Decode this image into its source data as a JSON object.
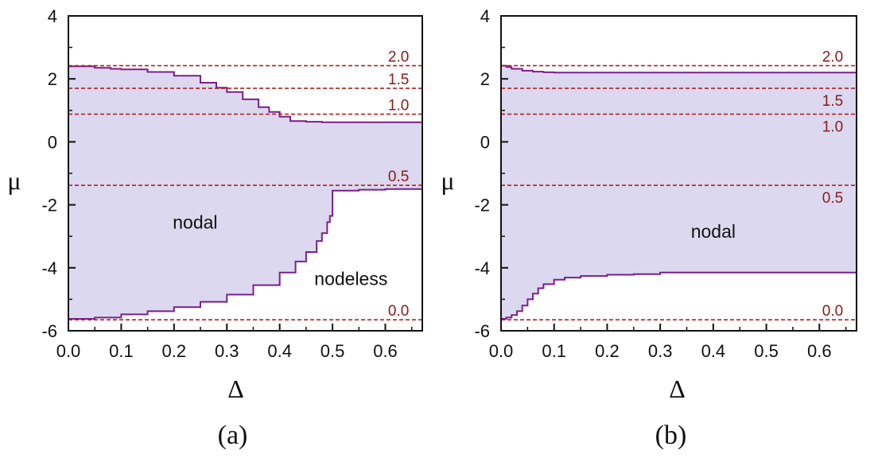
{
  "colors": {
    "fill": "#dcd8f0",
    "boundary": "#7a1f8a",
    "refline": "#b22222",
    "reflabel": "#8b1a1a",
    "axis": "#111111"
  },
  "chart_data": [
    {
      "type": "area",
      "panel_label": "(a)",
      "xlabel": "Δ",
      "ylabel": "μ",
      "xlim": [
        0.0,
        0.67
      ],
      "ylim": [
        -6,
        4
      ],
      "xticks": [
        "0.0",
        "0.1",
        "0.2",
        "0.3",
        "0.4",
        "0.5",
        "0.6"
      ],
      "xtick_values": [
        0.0,
        0.1,
        0.2,
        0.3,
        0.4,
        0.5,
        0.6
      ],
      "yticks": [
        "-6",
        "-4",
        "-2",
        "0",
        "2",
        "4"
      ],
      "ytick_values": [
        -6,
        -4,
        -2,
        0,
        2,
        4
      ],
      "upper_boundary": {
        "x": [
          0.0,
          0.03,
          0.05,
          0.08,
          0.1,
          0.15,
          0.2,
          0.25,
          0.28,
          0.3,
          0.33,
          0.36,
          0.38,
          0.4,
          0.42,
          0.45,
          0.48,
          0.5,
          0.55,
          0.6,
          0.67
        ],
        "y": [
          2.4,
          2.4,
          2.35,
          2.32,
          2.3,
          2.22,
          2.1,
          1.88,
          1.72,
          1.58,
          1.35,
          1.1,
          0.95,
          0.8,
          0.66,
          0.64,
          0.62,
          0.62,
          0.62,
          0.62,
          0.62
        ]
      },
      "lower_boundary": {
        "x": [
          0.0,
          0.03,
          0.05,
          0.1,
          0.15,
          0.2,
          0.25,
          0.3,
          0.35,
          0.4,
          0.43,
          0.45,
          0.47,
          0.48,
          0.49,
          0.495,
          0.5,
          0.52,
          0.55,
          0.6,
          0.67
        ],
        "y": [
          -5.62,
          -5.62,
          -5.58,
          -5.48,
          -5.38,
          -5.25,
          -5.08,
          -4.85,
          -4.55,
          -4.15,
          -3.8,
          -3.5,
          -3.15,
          -2.9,
          -2.55,
          -2.35,
          -1.55,
          -1.55,
          -1.52,
          -1.5,
          -1.5
        ]
      },
      "ref_lines": [
        {
          "label": "2.0",
          "y": 2.42
        },
        {
          "label": "1.5",
          "y": 1.7
        },
        {
          "label": "1.0",
          "y": 0.88
        },
        {
          "label": "0.5",
          "y": -1.38
        },
        {
          "label": "0.0",
          "y": -5.65
        }
      ],
      "ref_label_x": 0.625,
      "region_labels": [
        {
          "text": "nodal",
          "x": 0.24,
          "y": -2.75
        },
        {
          "text": "nodeless",
          "x": 0.535,
          "y": -4.55
        }
      ]
    },
    {
      "type": "area",
      "panel_label": "(b)",
      "xlabel": "Δ",
      "ylabel": "μ",
      "xlim": [
        0.0,
        0.67
      ],
      "ylim": [
        -6,
        4
      ],
      "xticks": [
        "0.0",
        "0.1",
        "0.2",
        "0.3",
        "0.4",
        "0.5",
        "0.6"
      ],
      "xtick_values": [
        0.0,
        0.1,
        0.2,
        0.3,
        0.4,
        0.5,
        0.6
      ],
      "yticks": [
        "-6",
        "-4",
        "-2",
        "0",
        "2",
        "4"
      ],
      "ytick_values": [
        -6,
        -4,
        -2,
        0,
        2,
        4
      ],
      "upper_boundary": {
        "x": [
          0.0,
          0.01,
          0.02,
          0.04,
          0.06,
          0.08,
          0.1,
          0.2,
          0.3,
          0.4,
          0.5,
          0.6,
          0.67
        ],
        "y": [
          2.42,
          2.38,
          2.32,
          2.26,
          2.23,
          2.21,
          2.2,
          2.2,
          2.2,
          2.2,
          2.2,
          2.2,
          2.2
        ]
      },
      "lower_boundary": {
        "x": [
          0.0,
          0.01,
          0.02,
          0.03,
          0.04,
          0.05,
          0.06,
          0.07,
          0.08,
          0.1,
          0.12,
          0.15,
          0.2,
          0.25,
          0.3,
          0.4,
          0.5,
          0.6,
          0.67
        ],
        "y": [
          -5.62,
          -5.58,
          -5.5,
          -5.38,
          -5.2,
          -5.0,
          -4.82,
          -4.65,
          -4.52,
          -4.38,
          -4.31,
          -4.26,
          -4.22,
          -4.2,
          -4.15,
          -4.15,
          -4.15,
          -4.15,
          -4.15
        ]
      },
      "ref_lines": [
        {
          "label": "2.0",
          "y": 2.42
        },
        {
          "label": "1.5",
          "y": 1.7
        },
        {
          "label": "1.0",
          "y": 0.88
        },
        {
          "label": "0.5",
          "y": -1.38
        },
        {
          "label": "0.0",
          "y": -5.65
        }
      ],
      "ref_label_x": 0.625,
      "region_labels": [
        {
          "text": "nodal",
          "x": 0.4,
          "y": -3.05
        }
      ]
    }
  ]
}
